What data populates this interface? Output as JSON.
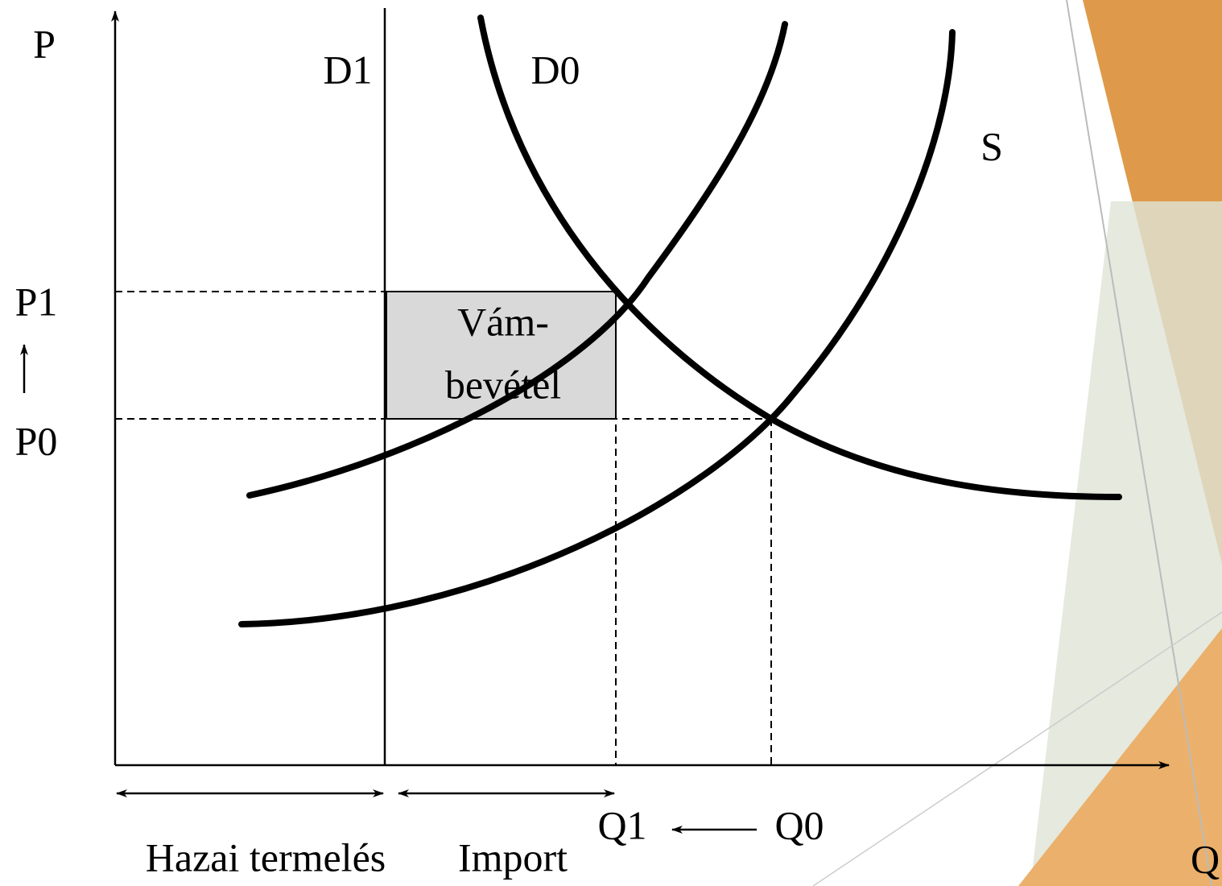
{
  "axes": {
    "y_label": "P",
    "x_label": "Q"
  },
  "curves": {
    "d1": "D1",
    "d0": "D0",
    "s": "S"
  },
  "prices": {
    "p1": "P1",
    "p0": "P0"
  },
  "quantities": {
    "q1": "Q1",
    "q0": "Q0"
  },
  "box": {
    "line1": "Vám-",
    "line2": "bevétel"
  },
  "ranges": {
    "domestic": "Hazai termelés",
    "import": "Import"
  }
}
